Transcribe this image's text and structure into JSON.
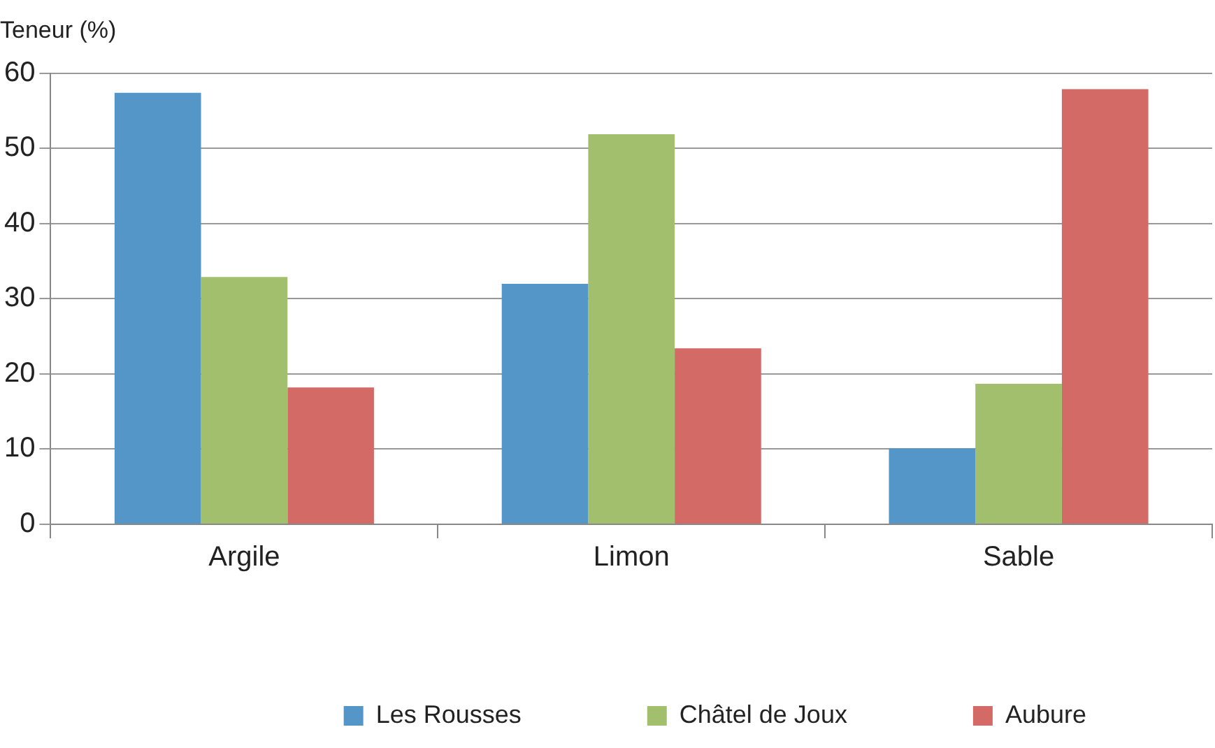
{
  "chart_data": {
    "type": "bar",
    "ylabel": "Teneur (%)",
    "categories": [
      "Argile",
      "Limon",
      "Sable"
    ],
    "series": [
      {
        "name": "Les Rousses",
        "color": "#5496c8",
        "values": [
          57.4,
          32.0,
          10.1
        ]
      },
      {
        "name": "Châtel de Joux",
        "color": "#a2bf6e",
        "values": [
          32.9,
          51.9,
          18.7
        ]
      },
      {
        "name": "Aubure",
        "color": "#d46a66",
        "values": [
          18.2,
          23.4,
          57.9
        ]
      }
    ],
    "ylim": [
      0,
      60
    ],
    "yticks": [
      0,
      10,
      20,
      30,
      40,
      50,
      60
    ],
    "grid": "y",
    "legend": "bottom"
  }
}
